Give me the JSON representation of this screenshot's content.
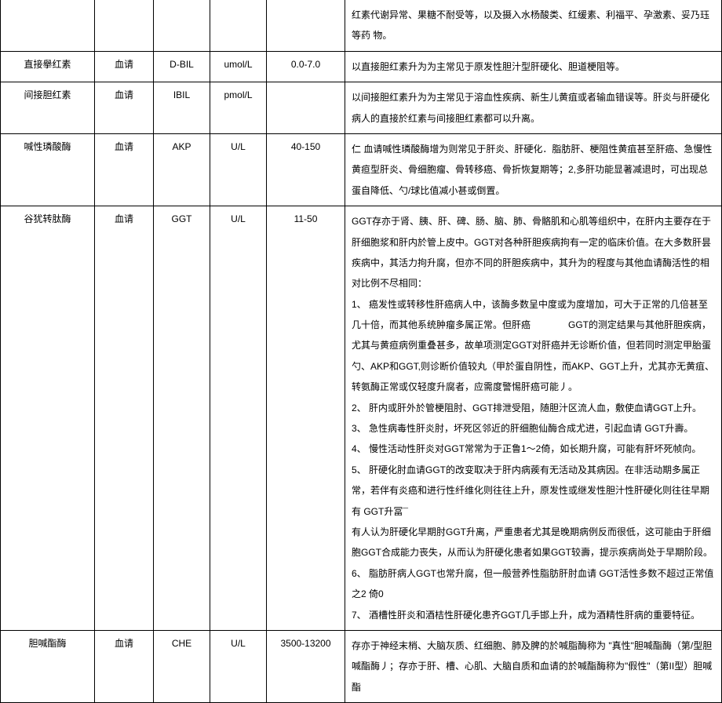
{
  "columns": {
    "name_width": 120,
    "sample_width": 75,
    "abbr_width": 72,
    "unit_width": 72,
    "range_width": 100
  },
  "rows": [
    {
      "name": "",
      "sample": "",
      "abbr": "",
      "unit": "",
      "range": "",
      "desc": "红素代谢异常、果糖不耐受等，以及摄入水杨酸类、红缓素、利福平、孕激素、妥乃珏等药 物。",
      "continuation": true
    },
    {
      "name": "直接擧红素",
      "sample": "血请",
      "abbr": "D-BIL",
      "unit": "umol/L",
      "range": "0.0-7.0",
      "desc": "以直接胆红素升为为主常见于原发性胆汁型肝硬化、胆道梗阻等。"
    },
    {
      "name": "间接胆红素",
      "sample": "血请",
      "abbr": "IBIL",
      "unit": "pmol/L",
      "range": "",
      "desc": "以间接胆红素升为为主常见于溶血性疾病、新生儿黄疽或者输血错误等。肝炎与肝硬化病人的直接於红素与间接胆红素都可以升离。"
    },
    {
      "name": "喊性璘酸酶",
      "sample": "血请",
      "abbr": "AKP",
      "unit": "U/L",
      "range": "40-150",
      "desc": "仁 血请喊性璘酸酶增为则常见于肝炎、肝硬化．脂肪肝、梗阻性黄疽甚至肝癌、急慢性黄疸型肝炎、骨细胞瘤、骨转移癌、骨折恢复期等；2,多肝功能显著减退时，可出现总蛋自降低、勺/球比值减小甚或倒置。"
    },
    {
      "name": "谷犹转肽酶",
      "sample": "血请",
      "abbr": "GGT",
      "unit": "U/L",
      "range": "11-50",
      "desc": "GGT存亦于肾、胰、肝、碑、肠、脑、肺、骨骼肌和心肌等组织中，在肝内主要存在于肝细胞浆和肝内於管上皮中。GGT对各种肝胆疾病拘有一定的临床价值。在大多数肝昙疾病中，其活力拘升腐，但亦不同的肝胆疾病中，其升为的程度与其他血请酶活性的相对比例不尽相同：\n1、 癌发性或转移性肝癌病人中，该酶多数呈中度或为度增加，可大于正常的几倍甚至几十倍，而其他系统肿瘤多属正常。但肝癌　　　　GGT的测定结果与其他肝胆疾病，尤其与黄疸病例重叠甚多，故单项测定GGT对肝癌并无诊断价值，但若同时测定甲胎蛋勺、AKP和GGT,则诊断价值较丸（甲於蛋自阴性，而AKP、GGT上升，尤其亦无黄疽、转氨酶正常或仅轻度升腐者，应需度警惕肝癌可能丿。\n2、 肝内或肝外於管梗阻肘、GGT排泄受阻，随胆汁区流人血，敷使血请GGT上升。\n3、 急性病毒性肝炎肘，坏死区邻近的肝细胞仙酶合成尤进，引起血请 GGT升壽。\n4、 慢性活动性肝炎对GGT常常为于正鲁1～2倚，如长期升腐，可能有肝坏死帧向。\n5、 肝硬化肘血请GGT的改变取决于肝内病蒺有无活动及其病因。在非活动期多属正常，若伴有炎癌和进行性纤维化则往往上升，原发性或继发性胆汁性肝硬化则往往早期有 GGT升冨¯\n有人认为肝硬化早期肘GGT升离，严重患者尤其是晚期病例反而很低，这可能由于肝细胞GGT合成能力丧失，从而认为肝硬化患者如果GGT较壽，提示疾病尚处于早期阶段。\n6、 脂肪肝病人GGT也常升腐，但一般营养性脂肪肝肘血请 GGT活性多数不超过正常值之2 倚0\n7、 酒槽性肝炎和酒桔性肝硬化患齐GGT几手邯上升，成为酒精性肝病的重要特征。"
    },
    {
      "name": "胆喊酯酶",
      "sample": "血请",
      "abbr": "CHE",
      "unit": "U/L",
      "range": "3500-13200",
      "desc": "存亦于神经末梢、大脑灰质、红细胞、肺及脾的於喊脂酶称为 \"真性\"胆喊酯酶（第/型胆喊酯酶丿；存亦于肝、槽、心肌、大脑自质和血请的於喊酯酶称为\"假性\"（第II型）胆喊酯"
    }
  ]
}
